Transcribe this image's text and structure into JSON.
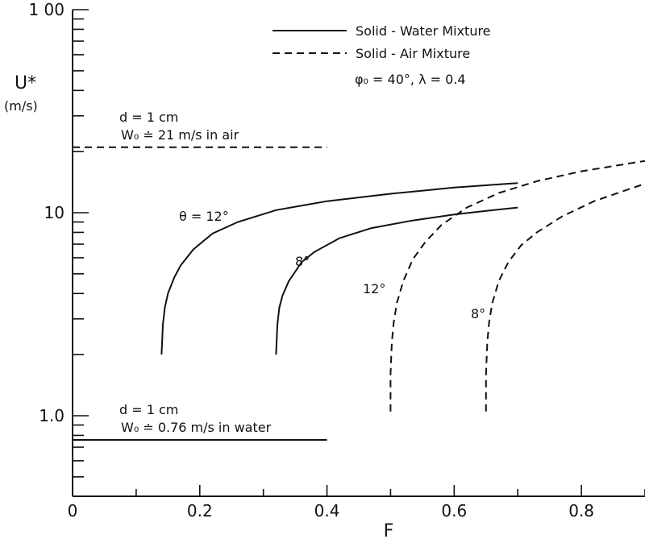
{
  "chart_data": {
    "type": "line",
    "xlabel": "F",
    "ylabel": "U*",
    "ylabel_unit": "(m/s)",
    "xlim": [
      0,
      0.9
    ],
    "ylim": [
      0.4,
      100
    ],
    "yscale": "log",
    "x_ticks": [
      {
        "value": 0,
        "label": "0"
      },
      {
        "value": 0.2,
        "label": "0.2"
      },
      {
        "value": 0.4,
        "label": "0.4"
      },
      {
        "value": 0.6,
        "label": "0.6"
      },
      {
        "value": 0.8,
        "label": "0.8"
      }
    ],
    "y_ticks": [
      {
        "value": 1.0,
        "label": "1.0"
      },
      {
        "value": 10,
        "label": "10"
      },
      {
        "value": 100,
        "label": "1 00"
      }
    ],
    "legend": {
      "placement": "top-right",
      "entries": [
        {
          "text": "Solid - Water  Mixture",
          "style": "solid"
        },
        {
          "text": "Solid - Air      Mixture",
          "style": "dashed"
        }
      ],
      "params": "φ₀ = 40°,     λ = 0.4"
    },
    "series": [
      {
        "label": "θ = 12°",
        "style": "solid",
        "x": [
          0.14,
          0.142,
          0.145,
          0.15,
          0.16,
          0.17,
          0.19,
          0.22,
          0.26,
          0.32,
          0.4,
          0.5,
          0.6,
          0.7
        ],
        "y": [
          2.0,
          2.8,
          3.4,
          4.0,
          4.8,
          5.5,
          6.6,
          7.9,
          9.0,
          10.3,
          11.4,
          12.4,
          13.3,
          14.0
        ]
      },
      {
        "label": "8°",
        "style": "solid",
        "x": [
          0.32,
          0.322,
          0.325,
          0.33,
          0.34,
          0.36,
          0.38,
          0.42,
          0.47,
          0.53,
          0.6,
          0.65,
          0.7
        ],
        "y": [
          2.0,
          2.8,
          3.4,
          3.9,
          4.6,
          5.7,
          6.4,
          7.5,
          8.4,
          9.1,
          9.8,
          10.2,
          10.6
        ]
      },
      {
        "label": "12°",
        "style": "dashed",
        "x": [
          0.5,
          0.5,
          0.502,
          0.505,
          0.51,
          0.52,
          0.535,
          0.555,
          0.58,
          0.62,
          0.67,
          0.73,
          0.8,
          0.9
        ],
        "y": [
          1.05,
          1.6,
          2.3,
          2.9,
          3.6,
          4.6,
          5.9,
          7.2,
          8.7,
          10.6,
          12.5,
          14.3,
          16.0,
          18.0
        ]
      },
      {
        "label": "8°",
        "style": "dashed",
        "x": [
          0.65,
          0.65,
          0.652,
          0.655,
          0.66,
          0.67,
          0.685,
          0.705,
          0.73,
          0.77,
          0.82,
          0.87,
          0.9
        ],
        "y": [
          1.05,
          1.6,
          2.3,
          2.9,
          3.6,
          4.6,
          5.7,
          6.9,
          8.0,
          9.6,
          11.4,
          12.9,
          13.9
        ]
      }
    ],
    "reference_lines": [
      {
        "y": 21,
        "x_range": [
          0,
          0.4
        ],
        "style": "dashed",
        "line1": "d = 1 cm",
        "line2": "W₀ ≐ 21 m/s  in  air"
      },
      {
        "y": 0.76,
        "x_range": [
          0,
          0.4
        ],
        "style": "solid",
        "line1": "d = 1 cm",
        "line2": "W₀ ≐ 0.76 m/s  in  water"
      }
    ]
  }
}
